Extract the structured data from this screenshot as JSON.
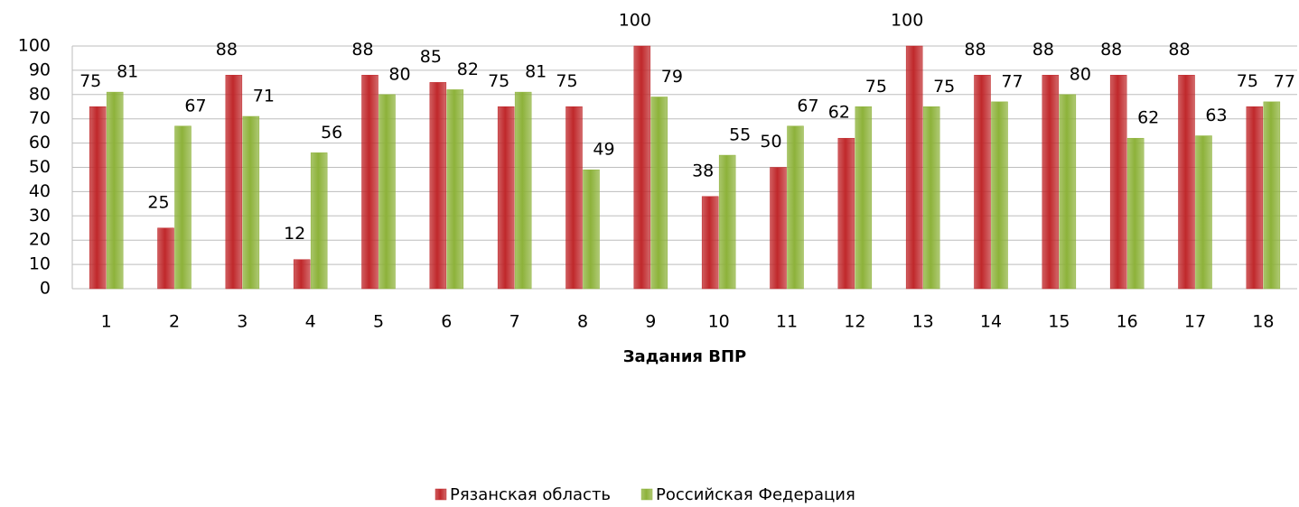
{
  "chart_data": {
    "type": "bar",
    "x_label": "Задания ВПР",
    "categories": [
      "1",
      "2",
      "3",
      "4",
      "5",
      "6",
      "7",
      "8",
      "9",
      "10",
      "11",
      "12",
      "13",
      "14",
      "15",
      "16",
      "17",
      "18"
    ],
    "series": [
      {
        "name": "Рязанская область",
        "color": "#c0282b",
        "values": [
          75,
          25,
          88,
          12,
          88,
          85,
          75,
          75,
          100,
          38,
          50,
          62,
          100,
          88,
          88,
          88,
          88,
          75
        ]
      },
      {
        "name": "Российская Федерация",
        "color": "#8db23a",
        "values": [
          81,
          67,
          71,
          56,
          80,
          82,
          81,
          49,
          79,
          55,
          67,
          75,
          75,
          77,
          80,
          62,
          63,
          77
        ]
      }
    ],
    "ylim": [
      0,
      100
    ],
    "yticks": [
      0,
      10,
      20,
      30,
      40,
      50,
      60,
      70,
      80,
      90,
      100
    ],
    "grid": true,
    "legend": "bottom"
  }
}
